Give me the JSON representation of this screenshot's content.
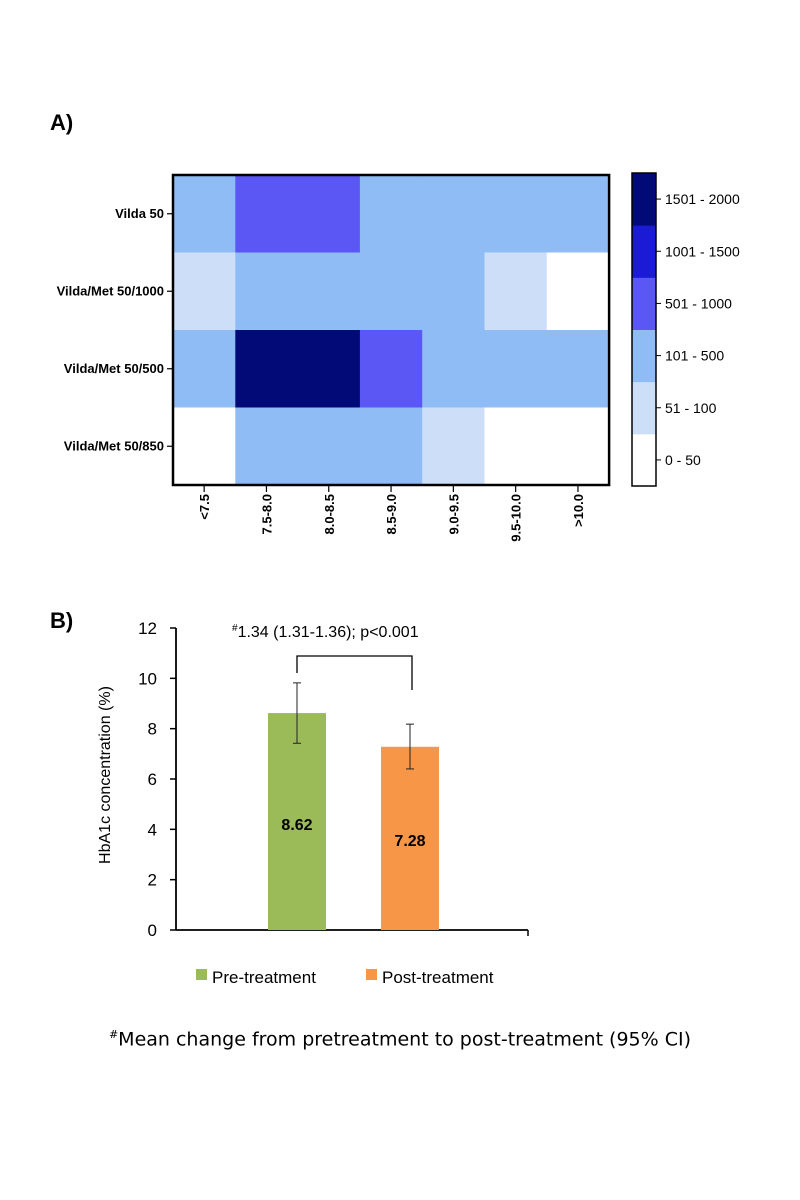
{
  "panel_a_label": "A)",
  "panel_b_label": "B)",
  "footnote": {
    "marker": "#",
    "text": "Mean change from pretreatment to post-treatment (95% CI)"
  },
  "chart_data": [
    {
      "type": "heatmap",
      "title": "",
      "rows": [
        "Vilda 50",
        "Vilda/Met 50/1000",
        "Vilda/Met 50/500",
        "Vilda/Met 50/850"
      ],
      "columns": [
        "<7.5",
        "7.5-8.0",
        "8.0-8.5",
        "8.5-9.0",
        "9.0-9.5",
        "9.5-10.0",
        ">10.0"
      ],
      "bins": [
        {
          "label": "0 - 50",
          "color": "#ffffff"
        },
        {
          "label": "51 - 100",
          "color": "#cddff8"
        },
        {
          "label": "101 - 500",
          "color": "#90bcf6"
        },
        {
          "label": "501 - 1000",
          "color": "#5a57f5"
        },
        {
          "label": "1001 - 1500",
          "color": "#1b1bd6"
        },
        {
          "label": "1501 - 2000",
          "color": "#020a78"
        }
      ],
      "cell_bin_index": [
        [
          2,
          3,
          3,
          2,
          2,
          2,
          2
        ],
        [
          1,
          2,
          2,
          2,
          2,
          1,
          0
        ],
        [
          2,
          5,
          5,
          3,
          2,
          2,
          2
        ],
        [
          0,
          2,
          2,
          2,
          1,
          0,
          0
        ]
      ]
    },
    {
      "type": "bar",
      "categories": [
        "Pre-treatment",
        "Post-treatment"
      ],
      "values": [
        8.62,
        7.28
      ],
      "value_labels": [
        "8.62",
        "7.28"
      ],
      "error_low": [
        7.42,
        6.4
      ],
      "error_high": [
        9.82,
        8.18
      ],
      "colors": [
        "#9bbb59",
        "#f79646"
      ],
      "ylabel": "HbA1c concentration (%)",
      "ylim": [
        0,
        12
      ],
      "yticks": [
        0,
        2,
        4,
        6,
        8,
        10,
        12
      ],
      "annotation": {
        "marker": "#",
        "text": "1.34 (1.31-1.36); p<0.001"
      },
      "legend": [
        "Pre-treatment",
        "Post-treatment"
      ],
      "legend_position": "bottom"
    }
  ]
}
